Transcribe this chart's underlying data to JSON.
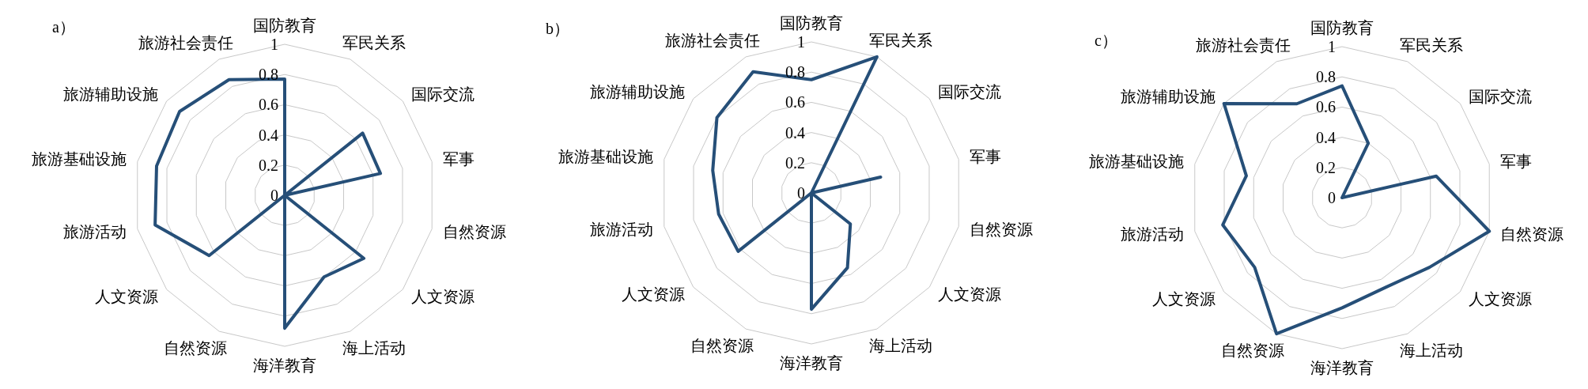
{
  "chart_data": [
    {
      "type": "radar",
      "title": "a）",
      "categories": [
        "国防教育",
        "军民关系",
        "国际交流",
        "军事",
        "自然资源",
        "人文资源",
        "海上活动",
        "海洋教育",
        "自然资源",
        "人文资源",
        "旅游活动",
        "旅游基础设施",
        "旅游辅助设施",
        "旅游社会责任"
      ],
      "series": [
        {
          "color": "#264f78",
          "values": [
            0.77,
            0,
            0.66,
            0.65,
            0,
            0.67,
            0.6,
            0.88,
            0,
            0.64,
            0.88,
            0.87,
            0.89,
            0.85
          ]
        }
      ],
      "ylim": [
        0,
        1
      ],
      "yticks": [
        0,
        0.2,
        0.4,
        0.6,
        0.8,
        1
      ],
      "grid": true
    },
    {
      "type": "radar",
      "title": "b）",
      "categories": [
        "国防教育",
        "军民关系",
        "国际交流",
        "军事",
        "自然资源",
        "人文资源",
        "海上活动",
        "海洋教育",
        "自然资源",
        "人文资源",
        "旅游活动",
        "旅游基础设施",
        "旅游辅助设施",
        "旅游社会责任"
      ],
      "series": [
        {
          "color": "#264f78",
          "values": [
            0.75,
            1,
            0,
            0.47,
            0,
            0.33,
            0.55,
            0.77,
            0,
            0.62,
            0.63,
            0.67,
            0.8,
            0.89
          ]
        }
      ],
      "ylim": [
        0,
        1
      ],
      "yticks": [
        0,
        0.2,
        0.4,
        0.6,
        0.8,
        1
      ],
      "grid": true
    },
    {
      "type": "radar",
      "title": "c）",
      "categories": [
        "国防教育",
        "军民关系",
        "国际交流",
        "军事",
        "自然资源",
        "人文资源",
        "海上活动",
        "海洋教育",
        "自然资源",
        "人文资源",
        "旅游活动",
        "旅游基础设施",
        "旅游辅助设施",
        "旅游社会责任"
      ],
      "series": [
        {
          "color": "#264f78",
          "values": [
            0.74,
            0.4,
            0,
            0.64,
            1,
            0.74,
            0.66,
            0.73,
            1,
            0.74,
            0.81,
            0.65,
            1,
            0.69
          ]
        }
      ],
      "ylim": [
        0,
        1
      ],
      "yticks": [
        0,
        0.2,
        0.4,
        0.6,
        0.8,
        1
      ],
      "grid": true
    }
  ]
}
